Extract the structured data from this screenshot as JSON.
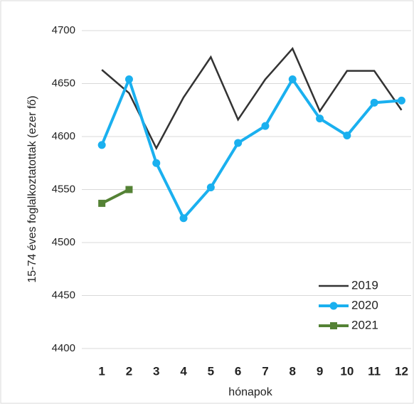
{
  "chart_data": {
    "type": "line",
    "y_label": "15-74 éves foglalkoztatottak  (ezer fő)",
    "x_label": "hónapok",
    "categories": [
      "1",
      "2",
      "3",
      "4",
      "5",
      "6",
      "7",
      "8",
      "9",
      "10",
      "11",
      "12"
    ],
    "series": [
      {
        "name": "2019",
        "color": "#333333",
        "marker": "none",
        "values": [
          4663,
          4641,
          4589,
          4637,
          4675,
          4616,
          4654,
          4683,
          4624,
          4662,
          4662,
          4625
        ]
      },
      {
        "name": "2020",
        "color": "#1ab0ef",
        "marker": "circle",
        "values": [
          4592,
          4654,
          4575,
          4523,
          4552,
          4594,
          4610,
          4654,
          4617,
          4601,
          4632,
          4634
        ]
      },
      {
        "name": "2021",
        "color": "#548235",
        "marker": "square",
        "values": [
          4537,
          4550,
          null,
          null,
          null,
          null,
          null,
          null,
          null,
          null,
          null,
          null
        ]
      }
    ],
    "ylim": [
      4400,
      4700
    ],
    "yticks": [
      4400,
      4450,
      4500,
      4550,
      4600,
      4650,
      4700
    ],
    "grid": true,
    "legend": "lower right"
  }
}
